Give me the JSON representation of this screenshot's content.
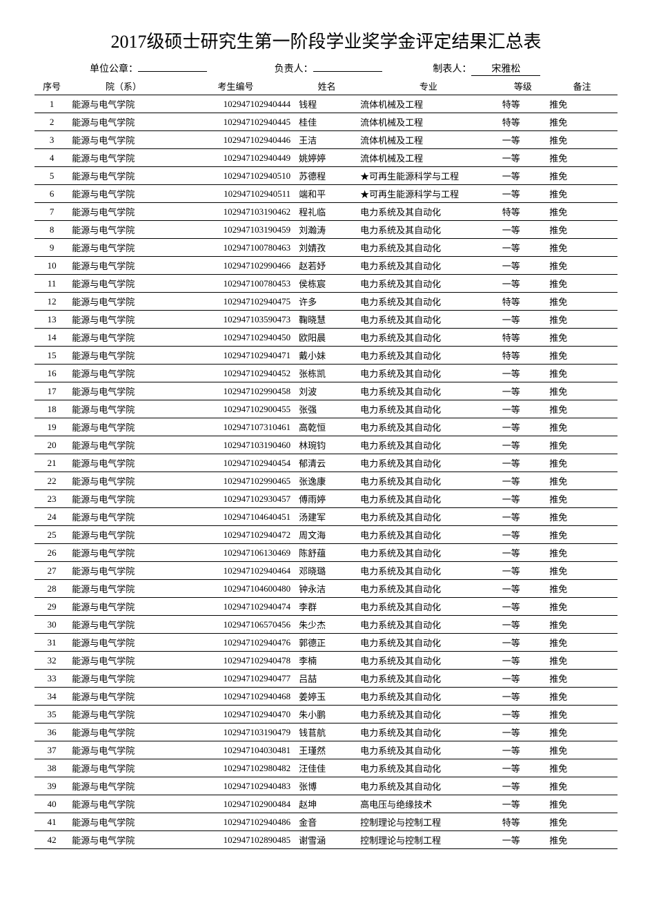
{
  "title": "2017级硕士研究生第一阶段学业奖学金评定结果汇总表",
  "meta": {
    "seal_label": "单位公章：",
    "seal_value": "",
    "responsible_label": "负责人：",
    "responsible_value": "",
    "maker_label": "制表人：",
    "maker_value": "宋雅松"
  },
  "columns": [
    "序号",
    "院（系）",
    "考生编号",
    "姓名",
    "专业",
    "等级",
    "备注"
  ],
  "rows": [
    [
      "1",
      "能源与电气学院",
      "102947102940444",
      "钱程",
      "流体机械及工程",
      "特等",
      "推免"
    ],
    [
      "2",
      "能源与电气学院",
      "102947102940445",
      "桂佳",
      "流体机械及工程",
      "特等",
      "推免"
    ],
    [
      "3",
      "能源与电气学院",
      "102947102940446",
      "王洁",
      "流体机械及工程",
      "一等",
      "推免"
    ],
    [
      "4",
      "能源与电气学院",
      "102947102940449",
      "姚婷婷",
      "流体机械及工程",
      "一等",
      "推免"
    ],
    [
      "5",
      "能源与电气学院",
      "102947102940510",
      "苏德程",
      "★可再生能源科学与工程",
      "一等",
      "推免"
    ],
    [
      "6",
      "能源与电气学院",
      "102947102940511",
      "端和平",
      "★可再生能源科学与工程",
      "一等",
      "推免"
    ],
    [
      "7",
      "能源与电气学院",
      "102947103190462",
      "程礼临",
      "电力系统及其自动化",
      "特等",
      "推免"
    ],
    [
      "8",
      "能源与电气学院",
      "102947103190459",
      "刘瀚涛",
      "电力系统及其自动化",
      "一等",
      "推免"
    ],
    [
      "9",
      "能源与电气学院",
      "102947100780463",
      "刘婧孜",
      "电力系统及其自动化",
      "一等",
      "推免"
    ],
    [
      "10",
      "能源与电气学院",
      "102947102990466",
      "赵若妤",
      "电力系统及其自动化",
      "一等",
      "推免"
    ],
    [
      "11",
      "能源与电气学院",
      "102947100780453",
      "侯栋宸",
      "电力系统及其自动化",
      "一等",
      "推免"
    ],
    [
      "12",
      "能源与电气学院",
      "102947102940475",
      "许多",
      "电力系统及其自动化",
      "特等",
      "推免"
    ],
    [
      "13",
      "能源与电气学院",
      "102947103590473",
      "鞠晓慧",
      "电力系统及其自动化",
      "一等",
      "推免"
    ],
    [
      "14",
      "能源与电气学院",
      "102947102940450",
      "欧阳晨",
      "电力系统及其自动化",
      "特等",
      "推免"
    ],
    [
      "15",
      "能源与电气学院",
      "102947102940471",
      "戴小妹",
      "电力系统及其自动化",
      "特等",
      "推免"
    ],
    [
      "16",
      "能源与电气学院",
      "102947102940452",
      "张栋凯",
      "电力系统及其自动化",
      "一等",
      "推免"
    ],
    [
      "17",
      "能源与电气学院",
      "102947102990458",
      "刘波",
      "电力系统及其自动化",
      "一等",
      "推免"
    ],
    [
      "18",
      "能源与电气学院",
      "102947102900455",
      "张强",
      "电力系统及其自动化",
      "一等",
      "推免"
    ],
    [
      "19",
      "能源与电气学院",
      "102947107310461",
      "高乾恒",
      "电力系统及其自动化",
      "一等",
      "推免"
    ],
    [
      "20",
      "能源与电气学院",
      "102947103190460",
      "林琬钧",
      "电力系统及其自动化",
      "一等",
      "推免"
    ],
    [
      "21",
      "能源与电气学院",
      "102947102940454",
      "郁清云",
      "电力系统及其自动化",
      "一等",
      "推免"
    ],
    [
      "22",
      "能源与电气学院",
      "102947102990465",
      "张逸康",
      "电力系统及其自动化",
      "一等",
      "推免"
    ],
    [
      "23",
      "能源与电气学院",
      "102947102930457",
      "傅雨婷",
      "电力系统及其自动化",
      "一等",
      "推免"
    ],
    [
      "24",
      "能源与电气学院",
      "102947104640451",
      "汤建军",
      "电力系统及其自动化",
      "一等",
      "推免"
    ],
    [
      "25",
      "能源与电气学院",
      "102947102940472",
      "周文海",
      "电力系统及其自动化",
      "一等",
      "推免"
    ],
    [
      "26",
      "能源与电气学院",
      "102947106130469",
      "陈舒蕴",
      "电力系统及其自动化",
      "一等",
      "推免"
    ],
    [
      "27",
      "能源与电气学院",
      "102947102940464",
      "邓晓璐",
      "电力系统及其自动化",
      "一等",
      "推免"
    ],
    [
      "28",
      "能源与电气学院",
      "102947104600480",
      "钟永洁",
      "电力系统及其自动化",
      "一等",
      "推免"
    ],
    [
      "29",
      "能源与电气学院",
      "102947102940474",
      "李群",
      "电力系统及其自动化",
      "一等",
      "推免"
    ],
    [
      "30",
      "能源与电气学院",
      "102947106570456",
      "朱少杰",
      "电力系统及其自动化",
      "一等",
      "推免"
    ],
    [
      "31",
      "能源与电气学院",
      "102947102940476",
      "郭德正",
      "电力系统及其自动化",
      "一等",
      "推免"
    ],
    [
      "32",
      "能源与电气学院",
      "102947102940478",
      "李楠",
      "电力系统及其自动化",
      "一等",
      "推免"
    ],
    [
      "33",
      "能源与电气学院",
      "102947102940477",
      "吕喆",
      "电力系统及其自动化",
      "一等",
      "推免"
    ],
    [
      "34",
      "能源与电气学院",
      "102947102940468",
      "姜婷玉",
      "电力系统及其自动化",
      "一等",
      "推免"
    ],
    [
      "35",
      "能源与电气学院",
      "102947102940470",
      "朱小鹏",
      "电力系统及其自动化",
      "一等",
      "推免"
    ],
    [
      "36",
      "能源与电气学院",
      "102947103190479",
      "钱苢航",
      "电力系统及其自动化",
      "一等",
      "推免"
    ],
    [
      "37",
      "能源与电气学院",
      "102947104030481",
      "王瑾然",
      "电力系统及其自动化",
      "一等",
      "推免"
    ],
    [
      "38",
      "能源与电气学院",
      "102947102980482",
      "汪佳佳",
      "电力系统及其自动化",
      "一等",
      "推免"
    ],
    [
      "39",
      "能源与电气学院",
      "102947102940483",
      "张博",
      "电力系统及其自动化",
      "一等",
      "推免"
    ],
    [
      "40",
      "能源与电气学院",
      "102947102900484",
      "赵坤",
      "高电压与绝缘技术",
      "一等",
      "推免"
    ],
    [
      "41",
      "能源与电气学院",
      "102947102940486",
      "金音",
      "控制理论与控制工程",
      "特等",
      "推免"
    ],
    [
      "42",
      "能源与电气学院",
      "102947102890485",
      "谢雪涵",
      "控制理论与控制工程",
      "一等",
      "推免"
    ]
  ]
}
